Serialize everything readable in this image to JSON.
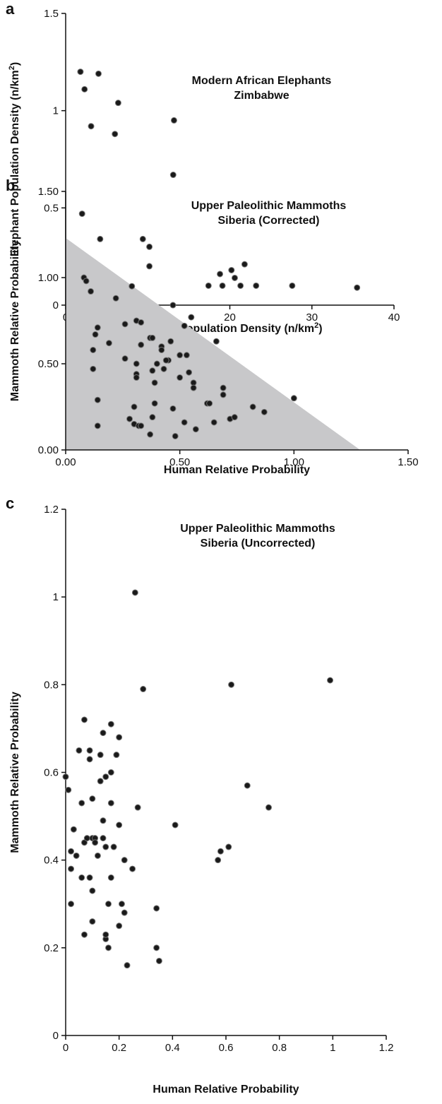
{
  "chart_data": [
    {
      "type": "scatter",
      "panel_label": "a",
      "title": "Modern African Elephants",
      "subtitle": "Zimbabwe",
      "x_label": [
        "Human Population Density (n/km",
        "2",
        ")"
      ],
      "y_label": [
        "Elephant Population Density (n/km",
        "2",
        ")"
      ],
      "x": [
        1.8,
        4.0,
        2.3,
        6.4,
        3.1,
        6.0,
        13.2,
        13.1,
        2.0,
        4.2,
        9.4,
        10.2,
        1.3,
        5.3,
        10.2,
        18.8,
        20.2,
        21.8,
        20.6,
        17.4,
        19.1,
        21.3,
        23.2,
        27.6,
        35.5
      ],
      "values": [
        1.2,
        1.19,
        1.11,
        1.04,
        0.92,
        0.88,
        0.95,
        0.67,
        0.47,
        0.34,
        0.34,
        0.3,
        0.21,
        0.15,
        0.2,
        0.16,
        0.18,
        0.21,
        0.14,
        0.1,
        0.1,
        0.1,
        0.1,
        0.1,
        0.09
      ],
      "color": "#1a1a1a",
      "xlim": [
        0,
        40
      ],
      "ylim": [
        0,
        1.5
      ],
      "xticks": [
        0,
        10,
        20,
        30,
        40
      ],
      "yticks": [
        0,
        0.5,
        1,
        1.5
      ]
    },
    {
      "type": "scatter",
      "panel_label": "b",
      "title": "Upper Paleolithic Mammoths",
      "subtitle": "Siberia (Corrected)",
      "x_label": [
        "Human Relative Probability"
      ],
      "y_label": [
        "Mammoth Relative Probability"
      ],
      "region": {
        "x": [
          0,
          0,
          1.29
        ],
        "y": [
          0,
          1.23,
          0
        ],
        "color": "#c8c8ca"
      },
      "x": [
        0.08,
        0.09,
        0.11,
        0.22,
        0.29,
        0.47,
        0.55,
        0.52,
        0.66,
        0.13,
        0.14,
        0.12,
        0.12,
        0.19,
        0.26,
        0.31,
        0.33,
        0.33,
        0.37,
        0.38,
        0.42,
        0.42,
        0.45,
        0.44,
        0.46,
        0.4,
        0.38,
        0.43,
        0.26,
        0.31,
        0.31,
        0.31,
        0.39,
        0.5,
        0.53,
        0.54,
        0.5,
        0.56,
        0.56,
        0.62,
        0.63,
        0.69,
        0.69,
        0.14,
        0.14,
        0.28,
        0.3,
        0.3,
        0.32,
        0.33,
        0.37,
        0.38,
        0.39,
        0.47,
        0.48,
        0.57,
        0.52,
        0.65,
        0.72,
        0.74,
        0.82,
        0.87,
        1.0
      ],
      "values": [
        1.0,
        0.98,
        0.92,
        0.88,
        0.95,
        0.84,
        0.77,
        0.72,
        0.63,
        0.67,
        0.71,
        0.58,
        0.47,
        0.62,
        0.73,
        0.75,
        0.74,
        0.61,
        0.65,
        0.65,
        0.6,
        0.58,
        0.52,
        0.52,
        0.63,
        0.5,
        0.46,
        0.47,
        0.53,
        0.5,
        0.44,
        0.42,
        0.39,
        0.55,
        0.55,
        0.45,
        0.42,
        0.39,
        0.36,
        0.27,
        0.27,
        0.36,
        0.32,
        0.29,
        0.14,
        0.18,
        0.25,
        0.15,
        0.14,
        0.14,
        0.09,
        0.19,
        0.27,
        0.24,
        0.08,
        0.12,
        0.16,
        0.16,
        0.18,
        0.19,
        0.25,
        0.22,
        0.3
      ],
      "color": "#1a1a1a",
      "xlim": [
        0,
        1.5
      ],
      "ylim": [
        0,
        1.5
      ],
      "xticks": [
        {
          "value": 0,
          "label": "0.00"
        },
        {
          "value": 0.5,
          "label": "0.50"
        },
        {
          "value": 1,
          "label": "1.00"
        },
        {
          "value": 1.5,
          "label": "1.50"
        }
      ],
      "yticks": [
        {
          "value": 0,
          "label": "0.00"
        },
        {
          "value": 0.5,
          "label": "0.50"
        },
        {
          "value": 1,
          "label": "1.00"
        },
        {
          "value": 1.5,
          "label": "1.50"
        }
      ]
    },
    {
      "type": "scatter",
      "panel_label": "c",
      "title": "Upper Paleolithic Mammoths",
      "subtitle": "Siberia (Uncorrected)",
      "x_label": [
        "Human Relative Probability"
      ],
      "y_label": [
        "Mammoth Relative Probability"
      ],
      "x": [
        0.0,
        0.01,
        0.02,
        0.02,
        0.02,
        0.03,
        0.04,
        0.05,
        0.06,
        0.06,
        0.07,
        0.07,
        0.07,
        0.08,
        0.09,
        0.09,
        0.09,
        0.1,
        0.1,
        0.1,
        0.1,
        0.11,
        0.11,
        0.12,
        0.13,
        0.13,
        0.14,
        0.14,
        0.14,
        0.15,
        0.15,
        0.15,
        0.15,
        0.16,
        0.16,
        0.17,
        0.17,
        0.17,
        0.17,
        0.18,
        0.19,
        0.2,
        0.2,
        0.2,
        0.21,
        0.22,
        0.22,
        0.23,
        0.25,
        0.26,
        0.27,
        0.29,
        0.34,
        0.34,
        0.35,
        0.41,
        0.57,
        0.58,
        0.61,
        0.62,
        0.68,
        0.76,
        0.99
      ],
      "values": [
        0.59,
        0.56,
        0.42,
        0.38,
        0.3,
        0.47,
        0.41,
        0.65,
        0.53,
        0.36,
        0.72,
        0.44,
        0.23,
        0.45,
        0.65,
        0.63,
        0.36,
        0.54,
        0.45,
        0.26,
        0.33,
        0.45,
        0.44,
        0.41,
        0.58,
        0.64,
        0.69,
        0.49,
        0.45,
        0.59,
        0.43,
        0.22,
        0.23,
        0.3,
        0.2,
        0.71,
        0.6,
        0.53,
        0.36,
        0.43,
        0.64,
        0.25,
        0.68,
        0.48,
        0.3,
        0.28,
        0.4,
        0.16,
        0.38,
        1.01,
        0.52,
        0.79,
        0.29,
        0.2,
        0.17,
        0.48,
        0.4,
        0.42,
        0.43,
        0.8,
        0.57,
        0.52,
        0.81
      ],
      "color": "#1a1a1a",
      "xlim": [
        0,
        1.2
      ],
      "ylim": [
        0,
        1.2
      ],
      "xticks": [
        0,
        0.2,
        0.4,
        0.6,
        0.8,
        1,
        1.2
      ],
      "yticks": [
        0,
        0.2,
        0.4,
        0.6,
        0.8,
        1,
        1.2
      ]
    }
  ]
}
